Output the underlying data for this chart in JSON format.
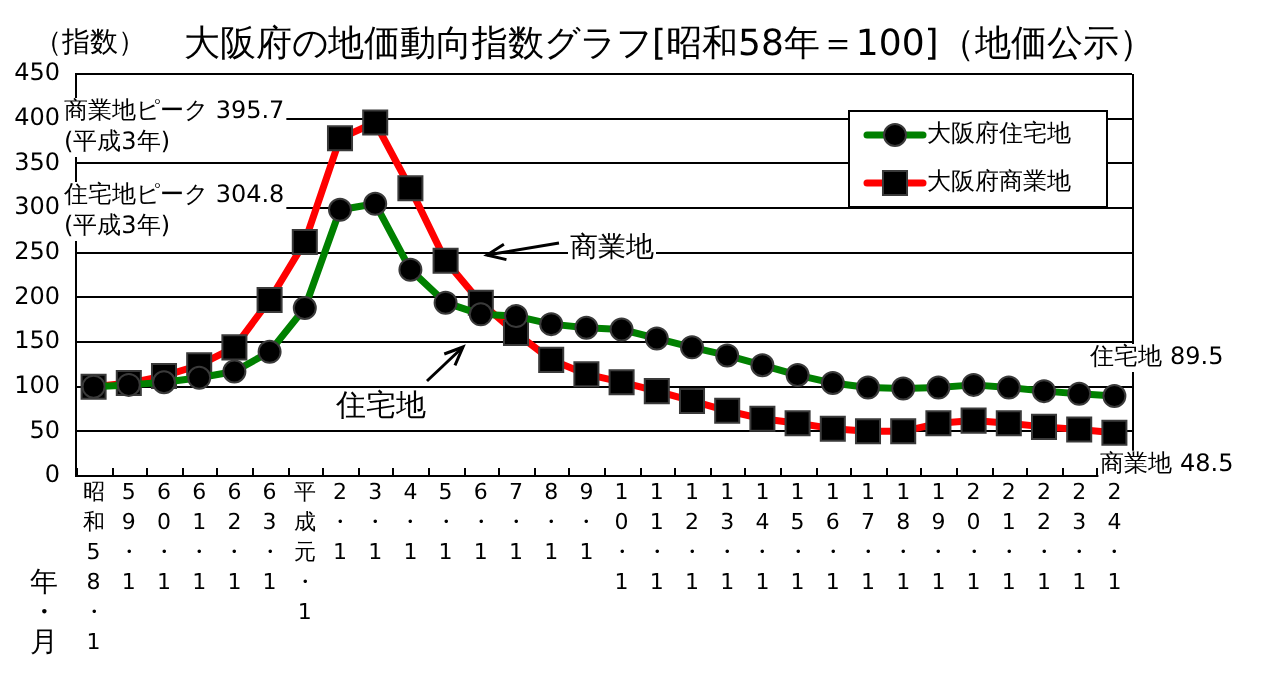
{
  "chart_data": {
    "type": "line",
    "title": "大阪府の地価動向指数グラフ[昭和58年＝100]（地価公示）",
    "xlabel": "年・月",
    "ylabel": "（指数）",
    "categories": [
      "昭和58・1",
      "59・1",
      "60・1",
      "61・1",
      "62・1",
      "63・1",
      "平成元・1",
      "2・1",
      "3・1",
      "4・1",
      "5・1",
      "6・1",
      "7・1",
      "8・1",
      "9・1",
      "10・1",
      "11・1",
      "12・1",
      "13・1",
      "14・1",
      "15・1",
      "16・1",
      "17・1",
      "18・1",
      "19・1",
      "20・1",
      "21・1",
      "22・1",
      "23・1",
      "24・1"
    ],
    "series": [
      {
        "name": "大阪府住宅地",
        "color": "#008000",
        "marker": "circle",
        "values": [
          100,
          102,
          105,
          110,
          117,
          139,
          188,
          298,
          304.8,
          231,
          194,
          181,
          179,
          170,
          166,
          164,
          154,
          144,
          135,
          124,
          113,
          104,
          99,
          98,
          99,
          102,
          99,
          95,
          92,
          89.5
        ]
      },
      {
        "name": "大阪府商業地",
        "color": "#ff0000",
        "marker": "square",
        "values": [
          100,
          104,
          112,
          124,
          144,
          197,
          262,
          378,
          395.7,
          322,
          241,
          194,
          160,
          130,
          114,
          105,
          95,
          84,
          73,
          64,
          59,
          53,
          50,
          50,
          59,
          62,
          59,
          55,
          52,
          48.5
        ]
      }
    ],
    "ylim": [
      0,
      450
    ],
    "yticks": [
      0,
      50,
      100,
      150,
      200,
      250,
      300,
      350,
      400,
      450
    ],
    "grid": "y",
    "legend": "top right",
    "annotations": [
      "商業地ピーク 395.7\n(平成3年)",
      "住宅地ピーク 304.8\n(平成3年)",
      "商業地",
      "住宅地",
      {
        "text": "住宅地 89.5",
        "x": "24・1",
        "y": 89.5
      },
      {
        "text": "商業地 48.5",
        "x": "24・1",
        "y": 48.5
      }
    ]
  }
}
